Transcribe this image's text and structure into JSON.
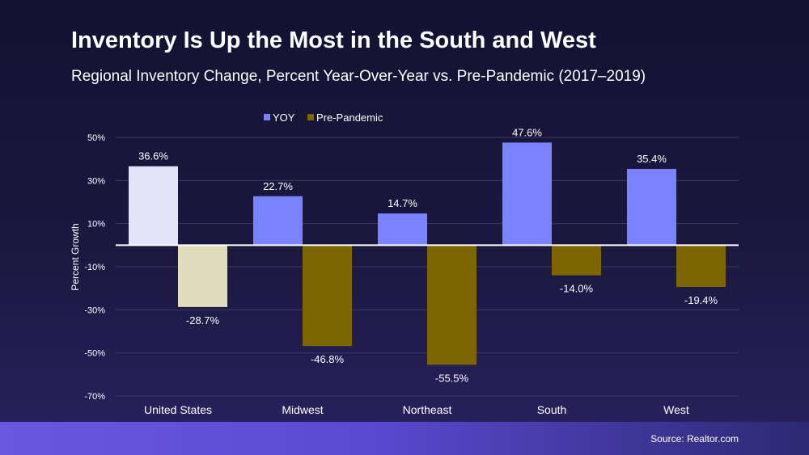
{
  "title": "Inventory Is Up the Most in the South and West",
  "subtitle": "Regional Inventory Change, Percent Year-Over-Year vs. Pre-Pandemic (2017–2019)",
  "source": "Source: Realtor.com",
  "colors": {
    "yoy": "#7b82ff",
    "pre_pandemic": "#7d6600",
    "us_yoy": "#e3e3fa",
    "us_pre_pandemic": "#e1dcbd",
    "grid": "#3b3966",
    "zero_line": "#ffffff",
    "text": "#ffffff"
  },
  "chart_data": {
    "type": "bar",
    "title": "Inventory Is Up the Most in the South and West",
    "subtitle": "Regional Inventory Change, Percent Year-Over-Year vs. Pre-Pandemic (2017–2019)",
    "xlabel": "",
    "ylabel": "Percent Growth",
    "ylim": [
      -70,
      50
    ],
    "yticks": [
      50,
      30,
      10,
      -10,
      -30,
      -50,
      -70
    ],
    "ytick_labels": [
      "50%",
      "30%",
      "10%",
      "-10%",
      "-30%",
      "-50%",
      "-70%"
    ],
    "grid": true,
    "legend_position": "top-center",
    "categories": [
      "United States",
      "Midwest",
      "Northeast",
      "South",
      "West"
    ],
    "series": [
      {
        "name": "YOY",
        "values": [
          36.6,
          22.7,
          14.7,
          47.6,
          35.4
        ],
        "labels": [
          "36.6%",
          "22.7%",
          "14.7%",
          "47.6%",
          "35.4%"
        ]
      },
      {
        "name": "Pre-Pandemic",
        "values": [
          -28.7,
          -46.8,
          -55.5,
          -14.0,
          -19.4
        ],
        "labels": [
          "-28.7%",
          "-46.8%",
          "-55.5%",
          "-14.0%",
          "-19.4%"
        ]
      }
    ]
  }
}
